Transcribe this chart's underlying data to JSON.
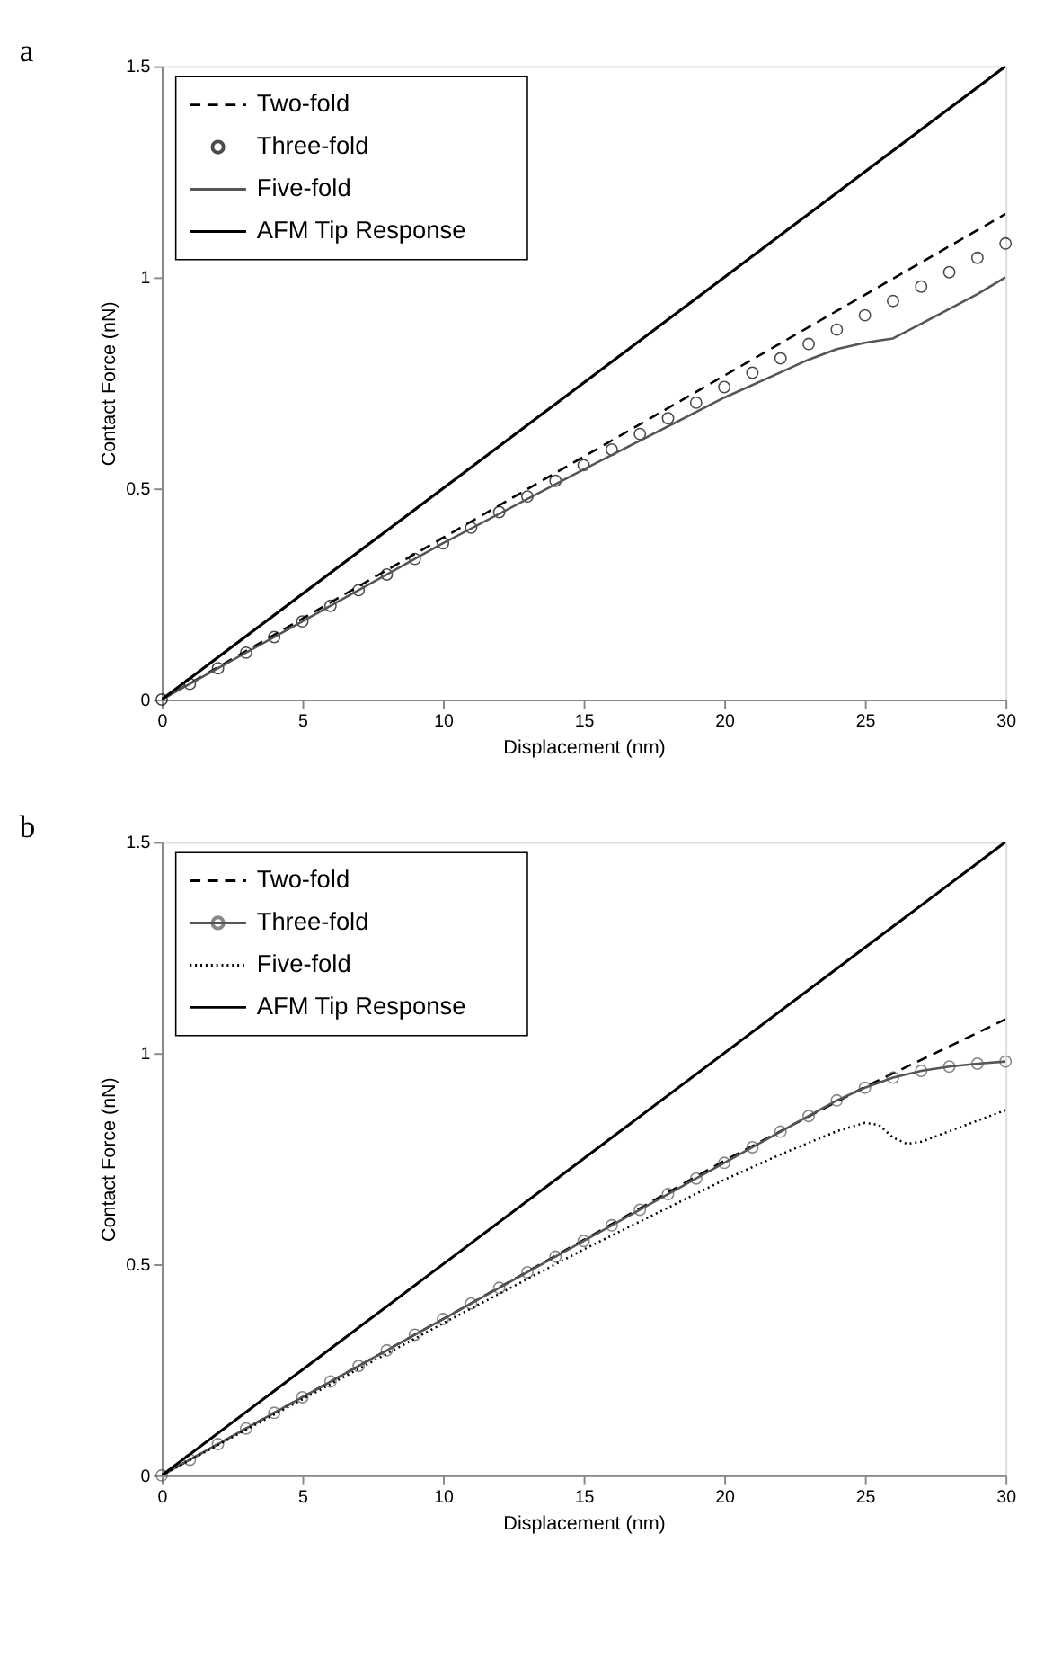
{
  "chart_data": [
    {
      "type": "line",
      "title": "a",
      "xlabel": "Displacement (nm)",
      "ylabel": "Contact Force (nN)",
      "xlim": [
        0,
        30
      ],
      "ylim": [
        0,
        1.5
      ],
      "xticks": [
        0,
        5,
        10,
        15,
        20,
        25,
        30
      ],
      "yticks": [
        0,
        0.5,
        1,
        1.5
      ],
      "grid": false,
      "legend": "top left",
      "series": [
        {
          "name": "Two-fold",
          "type": "line",
          "line_style": "dashed",
          "color": "#000000",
          "x": [
            0,
            10,
            20,
            30
          ],
          "values": [
            0,
            0.383,
            0.767,
            1.15
          ]
        },
        {
          "name": "Three-fold",
          "type": "scatter",
          "marker": "circle",
          "color": "#000000",
          "x": [
            0,
            1,
            2,
            3,
            4,
            5,
            6,
            7,
            8,
            9,
            10,
            11,
            12,
            13,
            14,
            15,
            16,
            17,
            18,
            19,
            20,
            21,
            22,
            23,
            24,
            25,
            26,
            27,
            28,
            29,
            30
          ],
          "values": [
            0,
            0.037,
            0.074,
            0.111,
            0.148,
            0.185,
            0.222,
            0.259,
            0.296,
            0.333,
            0.37,
            0.407,
            0.444,
            0.481,
            0.518,
            0.555,
            0.592,
            0.629,
            0.666,
            0.703,
            0.74,
            0.774,
            0.808,
            0.842,
            0.876,
            0.91,
            0.944,
            0.978,
            1.012,
            1.046,
            1.08
          ]
        },
        {
          "name": "Five-fold",
          "type": "line",
          "line_style": "solid",
          "color": "#555555",
          "x": [
            0,
            5,
            10,
            15,
            20,
            22,
            23,
            24,
            25,
            25.5,
            26,
            27,
            28,
            29,
            30
          ],
          "values": [
            0,
            0.185,
            0.37,
            0.545,
            0.715,
            0.775,
            0.805,
            0.83,
            0.845,
            0.85,
            0.855,
            0.89,
            0.925,
            0.96,
            1.0
          ]
        },
        {
          "name": "AFM Tip Response",
          "type": "line",
          "line_style": "solid",
          "color": "#000000",
          "x": [
            0,
            30
          ],
          "values": [
            0,
            1.5
          ]
        }
      ]
    },
    {
      "type": "line",
      "title": "b",
      "xlabel": "Displacement (nm)",
      "ylabel": "Contact Force (nN)",
      "xlim": [
        0,
        30
      ],
      "ylim": [
        0,
        1.5
      ],
      "xticks": [
        0,
        5,
        10,
        15,
        20,
        25,
        30
      ],
      "yticks": [
        0,
        0.5,
        1,
        1.5
      ],
      "grid": false,
      "legend": "top left",
      "series": [
        {
          "name": "Two-fold",
          "type": "line",
          "line_style": "dashed",
          "color": "#000000",
          "x": [
            0,
            10,
            20,
            25,
            30
          ],
          "values": [
            0,
            0.37,
            0.745,
            0.92,
            1.08
          ]
        },
        {
          "name": "Three-fold",
          "type": "line",
          "line_style": "solid",
          "marker": "circle",
          "color": "#555555",
          "x": [
            0,
            1,
            2,
            3,
            4,
            5,
            6,
            7,
            8,
            9,
            10,
            11,
            12,
            13,
            14,
            15,
            16,
            17,
            18,
            19,
            20,
            21,
            22,
            23,
            24,
            25,
            26,
            27,
            28,
            29,
            30
          ],
          "values": [
            0,
            0.037,
            0.074,
            0.111,
            0.148,
            0.185,
            0.222,
            0.259,
            0.296,
            0.333,
            0.37,
            0.407,
            0.444,
            0.481,
            0.518,
            0.555,
            0.592,
            0.629,
            0.666,
            0.703,
            0.74,
            0.777,
            0.814,
            0.851,
            0.888,
            0.918,
            0.942,
            0.958,
            0.968,
            0.975,
            0.98
          ]
        },
        {
          "name": "Five-fold",
          "type": "line",
          "line_style": "dotted",
          "color": "#000000",
          "x": [
            0,
            5,
            10,
            15,
            20,
            22,
            24,
            25,
            25.5,
            26,
            26.5,
            27,
            28,
            29,
            30
          ],
          "values": [
            0,
            0.18,
            0.36,
            0.535,
            0.7,
            0.76,
            0.815,
            0.835,
            0.83,
            0.8,
            0.785,
            0.79,
            0.815,
            0.84,
            0.865
          ]
        },
        {
          "name": "AFM Tip Response",
          "type": "line",
          "line_style": "solid",
          "color": "#000000",
          "x": [
            0,
            30
          ],
          "values": [
            0,
            1.5
          ]
        }
      ]
    }
  ]
}
